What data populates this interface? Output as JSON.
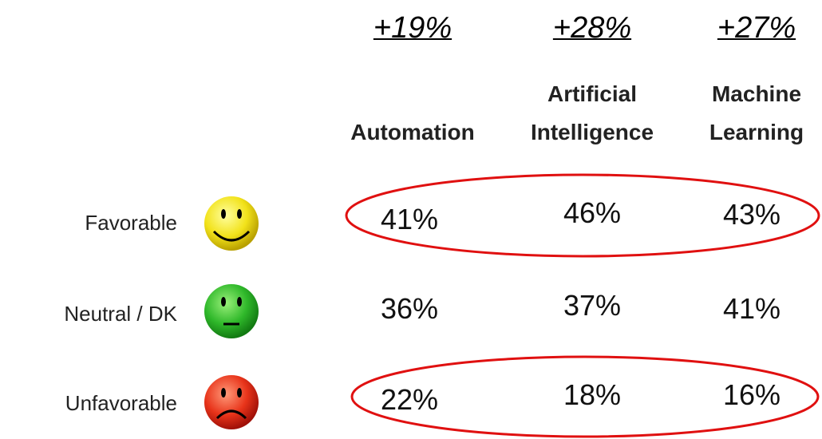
{
  "columns": [
    {
      "net": "+19%",
      "label": "Automation"
    },
    {
      "net": "+28%",
      "label": "Artificial Intelligence"
    },
    {
      "net": "+27%",
      "label": "Machine Learning"
    }
  ],
  "rows": [
    {
      "label": "Favorable",
      "values": [
        "41%",
        "46%",
        "43%"
      ]
    },
    {
      "label": "Neutral / DK",
      "values": [
        "36%",
        "37%",
        "41%"
      ]
    },
    {
      "label": "Unfavorable",
      "values": [
        "22%",
        "18%",
        "16%"
      ]
    }
  ]
}
